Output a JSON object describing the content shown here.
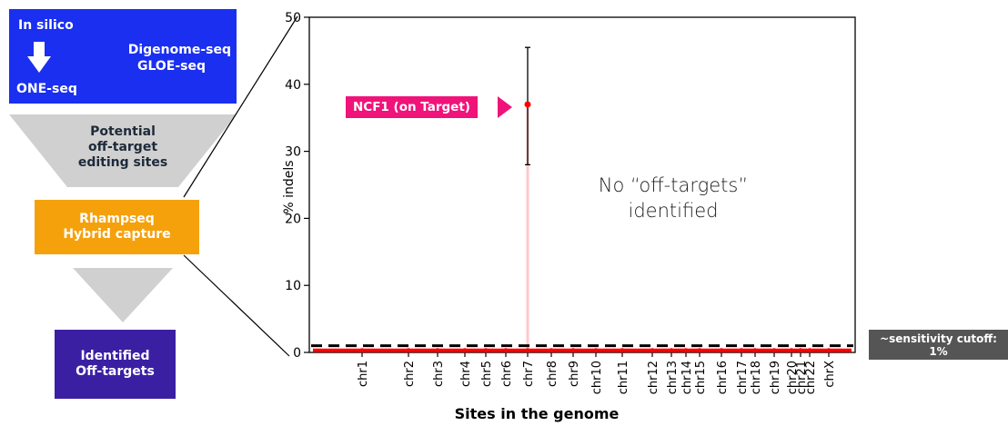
{
  "flow": {
    "step1": {
      "left_top": "In silico",
      "left_bottom": "ONE-seq",
      "right_line1": "Digenome-seq",
      "right_line2": "GLOE-seq"
    },
    "step2": {
      "line1": "Potential",
      "line2": "off-target",
      "line3": "editing sites"
    },
    "step3": {
      "line1": "Rhampseq",
      "line2": "Hybrid capture"
    },
    "step4": {
      "line1": "Identified",
      "line2": "Off-targets"
    }
  },
  "colors": {
    "blue_box": "#1a2ff0",
    "funnel_gray": "#d0d0d0",
    "orange_box": "#f5a10c",
    "purple_box": "#3b1fa3",
    "on_target_pink": "#f0137a",
    "series_red": "#ff0000",
    "cutoff_badge": "#555555"
  },
  "chart_data": {
    "type": "scatter",
    "ylabel": "% indels",
    "xlabel": "Sites in the genome",
    "ylim": [
      0,
      50
    ],
    "yticks": [
      0,
      10,
      20,
      30,
      40,
      50
    ],
    "categories": [
      "chr1",
      "chr2",
      "chr3",
      "chr4",
      "chr5",
      "chr6",
      "chr7",
      "chr8",
      "chr9",
      "chr10",
      "chr11",
      "chr12",
      "chr13",
      "chr14",
      "chr15",
      "chr16",
      "chr17",
      "chr18",
      "chr19",
      "chr20",
      "chr21",
      "chr22",
      "chrX"
    ],
    "baseline_value": 0.3,
    "cutoff_value": 1,
    "on_target": {
      "category": "chr7",
      "value": 37,
      "error_low": 28,
      "error_high": 45.5
    },
    "annotations": {
      "on_target_label": "NCF1 (on Target)",
      "no_off_line1": "No “off-targets”",
      "no_off_line2": "identified",
      "cutoff_line1": "~sensitivity cutoff:",
      "cutoff_line2": "1%"
    }
  }
}
